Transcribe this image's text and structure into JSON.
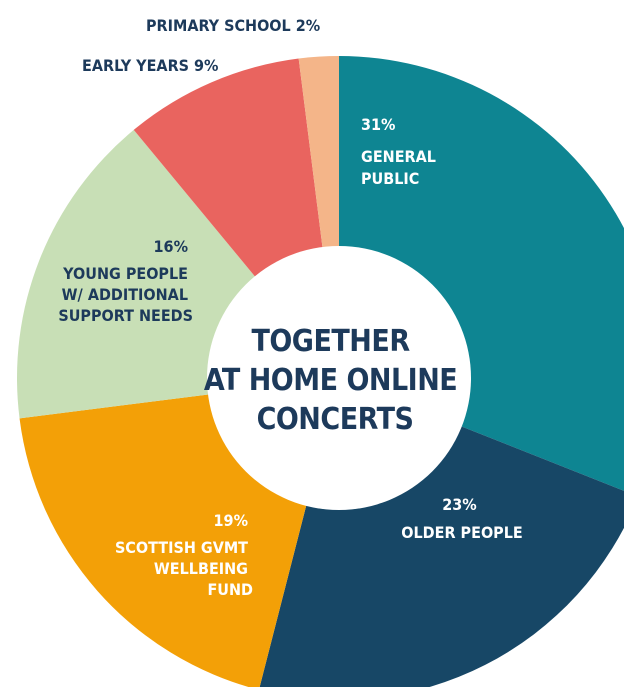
{
  "chart_data": {
    "type": "pie",
    "variant": "donut",
    "center_title": [
      "TOGETHER",
      "AT HOME ONLINE",
      "CONCERTS"
    ],
    "slices": [
      {
        "pct_label": "31%",
        "label_lines": [
          "GENERAL",
          "PUBLIC"
        ],
        "value": 31,
        "color": "#0e8592"
      },
      {
        "pct_label": "23%",
        "label_lines": [
          "OLDER PEOPLE"
        ],
        "value": 23,
        "color": "#174766"
      },
      {
        "pct_label": "19%",
        "label_lines": [
          "SCOTTISH GVMT",
          "WELLBEING",
          "FUND"
        ],
        "value": 19,
        "color": "#f3a007"
      },
      {
        "pct_label": "16%",
        "label_lines": [
          "YOUNG PEOPLE",
          "W/ ADDITIONAL",
          "SUPPORT NEEDS"
        ],
        "value": 16,
        "color": "#c8dfb6"
      },
      {
        "label": "EARLY YEARS 9%",
        "value": 9,
        "color": "#e9645f"
      },
      {
        "label": "PRIMARY SCHOOL 2%",
        "value": 2,
        "color": "#f4b589"
      }
    ],
    "text_colors": {
      "on_dark": "#ffffff",
      "on_light": "#1d3a5b",
      "center": "#1d3a5b",
      "outside": "#1d3a5b"
    }
  }
}
